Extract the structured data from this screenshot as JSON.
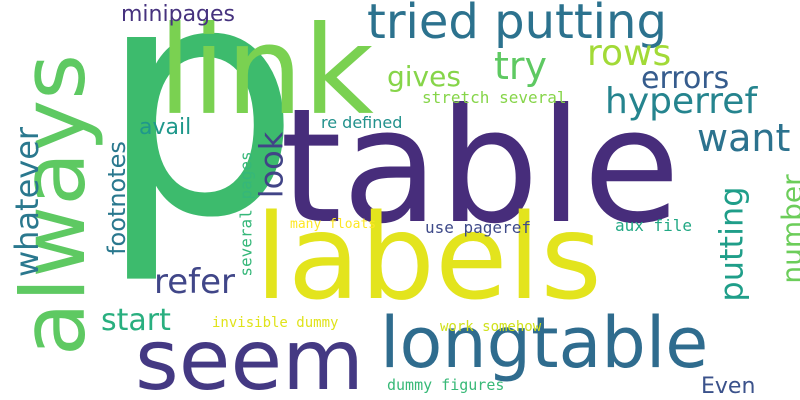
{
  "palette": {
    "purple": "#46327e",
    "blue": "#365c8d",
    "teal": "#277f8e",
    "sea": "#1fa187",
    "green": "#4ac16d",
    "lime": "#7ad151",
    "yellow": "#e3e41d",
    "light_yellow": "#f2e51d"
  },
  "words": [
    {
      "id": "p",
      "text": "p",
      "color": "#3dbb6d"
    },
    {
      "id": "table",
      "text": "table",
      "color": "#472d7b"
    },
    {
      "id": "labels",
      "text": "labels",
      "color": "#e3e41d"
    },
    {
      "id": "link",
      "text": "link",
      "color": "#7ad151"
    },
    {
      "id": "always",
      "text": "always",
      "color": "#5ec962"
    },
    {
      "id": "seem",
      "text": "seem",
      "color": "#443983"
    },
    {
      "id": "longtable",
      "text": "longtable",
      "color": "#2f6c8e"
    },
    {
      "id": "tried-putting",
      "text": "tried putting",
      "color": "#2c728e"
    },
    {
      "id": "rows",
      "text": "rows",
      "color": "#a2da37"
    },
    {
      "id": "try",
      "text": "try",
      "color": "#5ec962"
    },
    {
      "id": "gives",
      "text": "gives",
      "color": "#86d549"
    },
    {
      "id": "errors",
      "text": "errors",
      "color": "#365c8d"
    },
    {
      "id": "hyperref",
      "text": "hyperref",
      "color": "#25848e"
    },
    {
      "id": "minipages",
      "text": "minipages",
      "color": "#46327e"
    },
    {
      "id": "want",
      "text": "want",
      "color": "#2c728e"
    },
    {
      "id": "look",
      "text": "look",
      "color": "#414487"
    },
    {
      "id": "whatever",
      "text": "whatever",
      "color": "#2a788e"
    },
    {
      "id": "footnotes",
      "text": "footnotes",
      "color": "#2a788e"
    },
    {
      "id": "avail",
      "text": "avail",
      "color": "#1f988b"
    },
    {
      "id": "re-defined",
      "text": "re defined",
      "color": "#21918c"
    },
    {
      "id": "stretch-several",
      "text": "stretch several",
      "color": "#86d549"
    },
    {
      "id": "putting",
      "text": "putting",
      "color": "#1f9e89"
    },
    {
      "id": "number",
      "text": "number",
      "color": "#6ccd5a"
    },
    {
      "id": "several-pages",
      "text": "several pages",
      "color": "#35b779"
    },
    {
      "id": "many-floats",
      "text": "many floats",
      "color": "#fde725"
    },
    {
      "id": "use-pageref",
      "text": "use pageref",
      "color": "#3e4a89"
    },
    {
      "id": "aux-file",
      "text": "aux file",
      "color": "#22a884"
    },
    {
      "id": "refer",
      "text": "refer",
      "color": "#404688"
    },
    {
      "id": "start",
      "text": "start",
      "color": "#29af7f"
    },
    {
      "id": "invisible-dummy",
      "text": "invisible dummy",
      "color": "#e0e31b"
    },
    {
      "id": "work-somehow",
      "text": "work somehow",
      "color": "#d0e11c"
    },
    {
      "id": "dummy-figures",
      "text": "dummy figures",
      "color": "#38b977"
    },
    {
      "id": "even",
      "text": "Even",
      "color": "#3b528b"
    }
  ]
}
